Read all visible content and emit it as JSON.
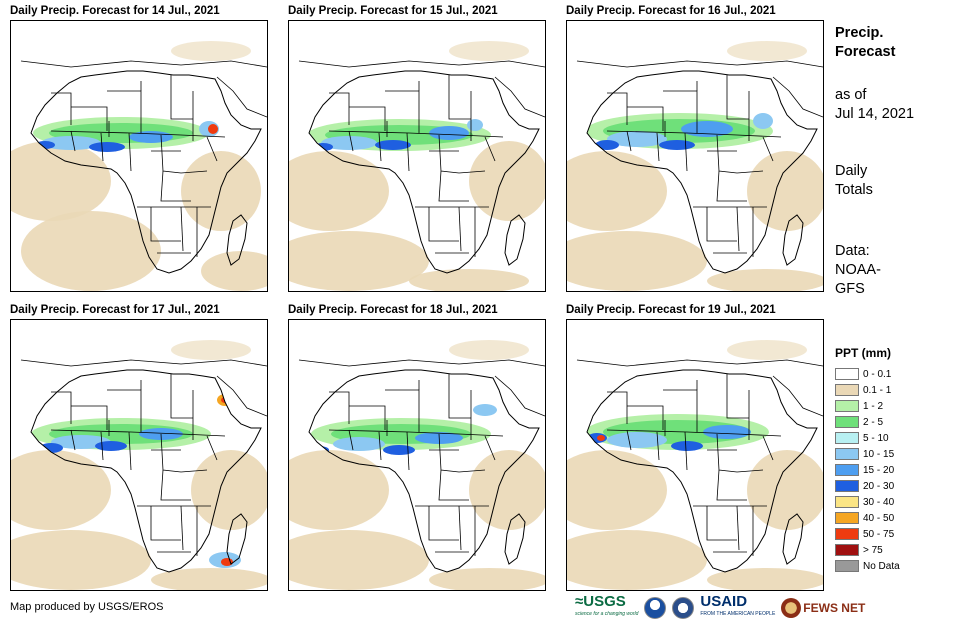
{
  "panels": [
    {
      "title": "Daily Precip. Forecast for 14 Jul., 2021"
    },
    {
      "title": "Daily Precip. Forecast for 15 Jul., 2021"
    },
    {
      "title": "Daily Precip. Forecast for 16 Jul., 2021"
    },
    {
      "title": "Daily Precip. Forecast for 17 Jul., 2021"
    },
    {
      "title": "Daily Precip. Forecast for 18 Jul., 2021"
    },
    {
      "title": "Daily Precip. Forecast for 19 Jul., 2021"
    }
  ],
  "side": {
    "title_line1": "Precip.",
    "title_line2": "Forecast",
    "asof_line1": "as of",
    "asof_line2": "Jul 14, 2021",
    "daily_line1": "Daily",
    "daily_line2": "Totals",
    "data_line1": "Data:",
    "data_line2": "NOAA-",
    "data_line3": "GFS"
  },
  "legend": {
    "title": "PPT (mm)",
    "items": [
      {
        "label": "0 - 0.1",
        "color": "#ffffff"
      },
      {
        "label": "0.1 - 1",
        "color": "#ead8b6"
      },
      {
        "label": "1 - 2",
        "color": "#b5f0a8"
      },
      {
        "label": "2 - 5",
        "color": "#6fe07a"
      },
      {
        "label": "5 - 10",
        "color": "#b8f0f2"
      },
      {
        "label": "10 - 15",
        "color": "#8cc8f2"
      },
      {
        "label": "15 - 20",
        "color": "#4e9ef0"
      },
      {
        "label": "20 - 30",
        "color": "#1f5fe0"
      },
      {
        "label": "30 - 40",
        "color": "#fbe585"
      },
      {
        "label": "40 - 50",
        "color": "#f5a623"
      },
      {
        "label": "50 - 75",
        "color": "#ef3b10"
      },
      {
        "label": "> 75",
        "color": "#a01010"
      },
      {
        "label": "No Data",
        "color": "#999999"
      }
    ]
  },
  "credit": "Map produced by USGS/EROS",
  "logos": {
    "usgs": "≈USGS",
    "usgs_tagline": "science for a changing world",
    "usaid": "USAID",
    "usaid_tagline": "FROM THE AMERICAN PEOPLE",
    "fews": "FEWS NET"
  }
}
